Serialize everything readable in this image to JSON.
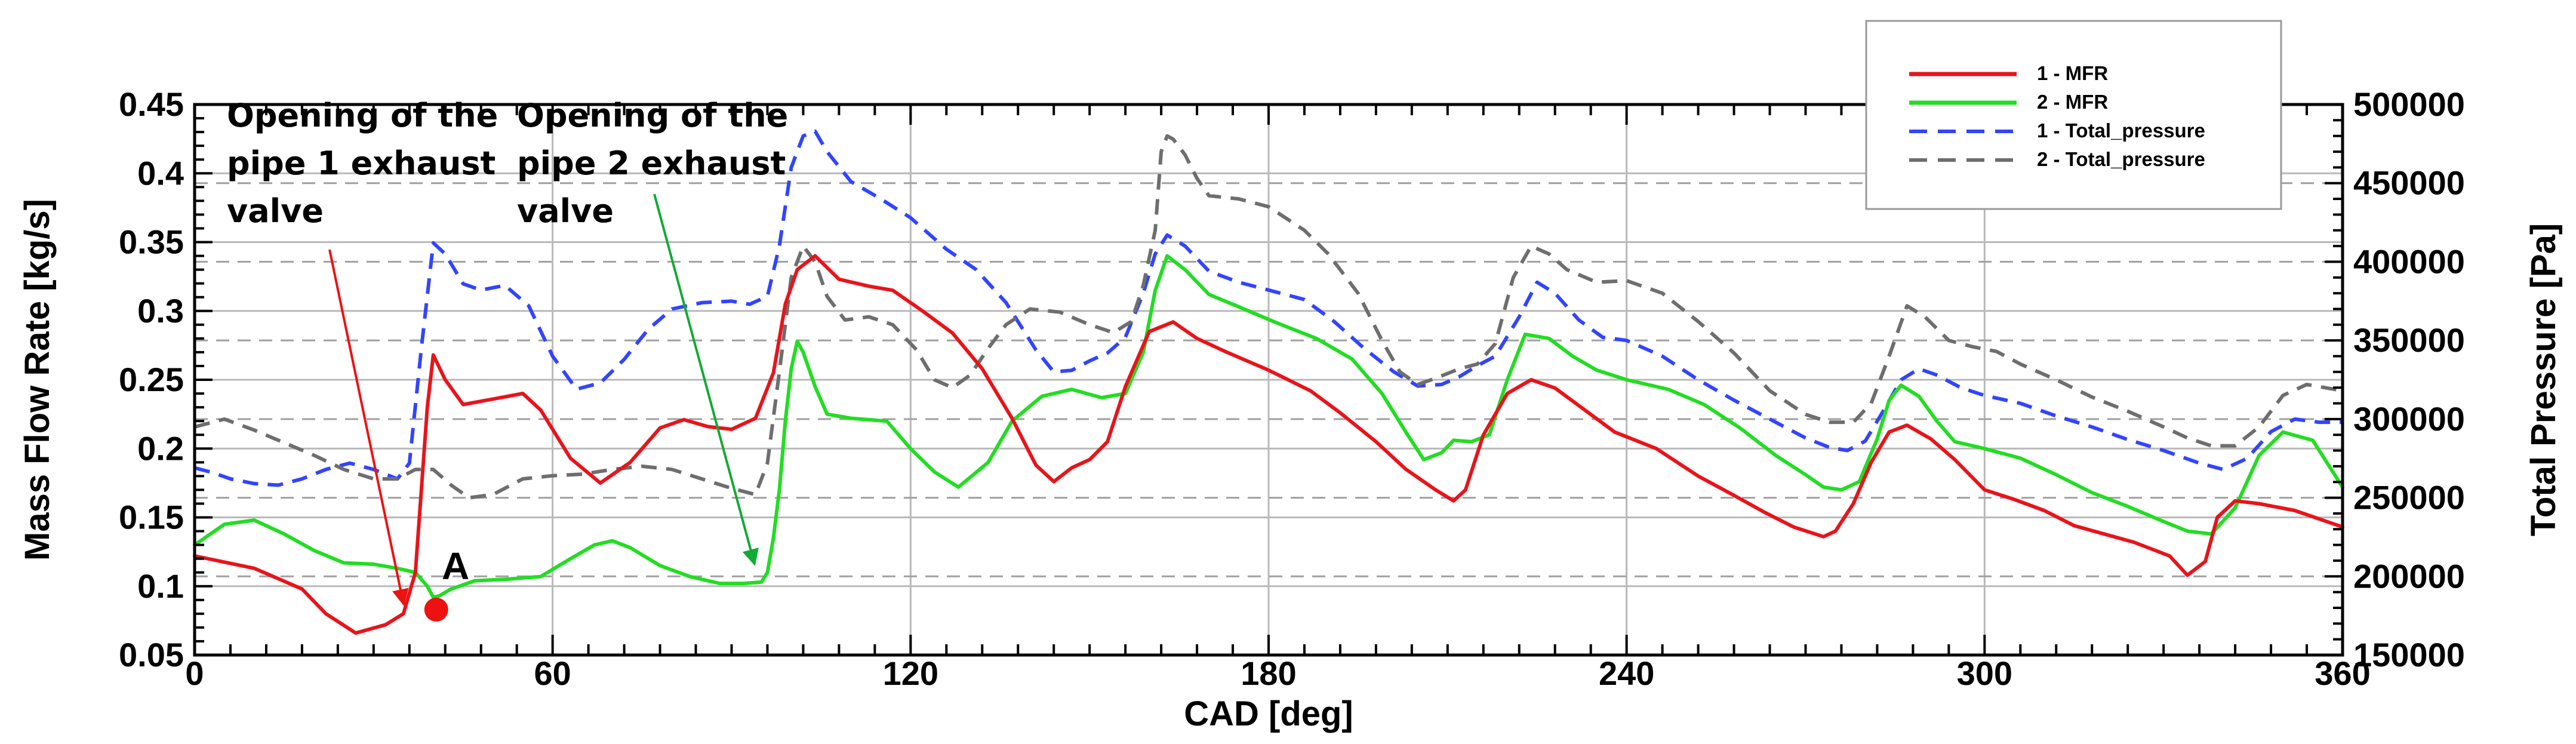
{
  "chart_data": {
    "type": "line",
    "xlabel": "CAD [deg]",
    "ylabel": "Mass Flow Rate [kg/s]",
    "y2label": "Total Pressure [Pa]",
    "xlim": [
      0,
      360
    ],
    "ylim": [
      0.05,
      0.45
    ],
    "y2lim": [
      150000,
      500000
    ],
    "xticks": [
      0,
      60,
      120,
      180,
      240,
      300,
      360
    ],
    "xtick_labels": [
      "0",
      "60",
      "120",
      "180",
      "240",
      "300",
      "360"
    ],
    "yticks": [
      0.05,
      0.1,
      0.15,
      0.2,
      0.25,
      0.3,
      0.35,
      0.4,
      0.45
    ],
    "ytick_labels": [
      "0.05",
      "0.1",
      "0.15",
      "0.2",
      "0.25",
      "0.3",
      "0.35",
      "0.4",
      "0.45"
    ],
    "y2ticks": [
      150000,
      200000,
      250000,
      300000,
      350000,
      400000,
      450000,
      500000
    ],
    "y2tick_labels": [
      "150000",
      "200000",
      "250000",
      "300000",
      "350000",
      "400000",
      "450000",
      "500000"
    ],
    "grid": true,
    "legend_position": "top-right",
    "series": [
      {
        "name": "1 - MFR",
        "axis": "left",
        "color": "#e8141b",
        "style": "solid",
        "x": [
          0,
          10,
          18,
          22,
          27,
          32,
          35,
          37,
          38,
          39,
          40,
          42,
          45,
          50,
          55,
          58,
          63,
          68,
          73,
          78,
          82,
          86,
          90,
          94,
          97,
          99,
          101,
          104,
          108,
          113,
          117,
          122,
          127,
          132,
          137,
          141,
          144,
          147,
          150,
          153,
          156,
          160,
          164,
          168,
          173,
          180,
          187,
          192,
          198,
          203,
          208,
          211,
          213,
          216,
          220,
          224,
          228,
          233,
          238,
          245,
          252,
          258,
          263,
          268,
          273,
          275,
          278,
          281,
          284,
          287,
          291,
          295,
          300,
          305,
          310,
          315,
          320,
          325,
          331,
          334,
          337,
          339,
          342,
          346,
          352,
          360
        ],
        "y": [
          0.122,
          0.113,
          0.098,
          0.08,
          0.066,
          0.072,
          0.08,
          0.11,
          0.17,
          0.23,
          0.268,
          0.25,
          0.232,
          0.236,
          0.24,
          0.228,
          0.193,
          0.175,
          0.19,
          0.215,
          0.221,
          0.216,
          0.214,
          0.222,
          0.255,
          0.305,
          0.33,
          0.34,
          0.323,
          0.318,
          0.315,
          0.3,
          0.284,
          0.258,
          0.222,
          0.188,
          0.176,
          0.186,
          0.192,
          0.205,
          0.245,
          0.285,
          0.292,
          0.28,
          0.27,
          0.257,
          0.242,
          0.226,
          0.205,
          0.185,
          0.17,
          0.162,
          0.17,
          0.21,
          0.24,
          0.25,
          0.244,
          0.228,
          0.212,
          0.2,
          0.18,
          0.166,
          0.154,
          0.143,
          0.136,
          0.14,
          0.16,
          0.19,
          0.212,
          0.217,
          0.207,
          0.192,
          0.17,
          0.163,
          0.155,
          0.144,
          0.138,
          0.132,
          0.122,
          0.108,
          0.118,
          0.15,
          0.162,
          0.16,
          0.155,
          0.143
        ]
      },
      {
        "name": "2 - MFR",
        "axis": "left",
        "color": "#22dd22",
        "style": "solid",
        "x": [
          0,
          5,
          10,
          15,
          20,
          25,
          30,
          34,
          37,
          39,
          40,
          41,
          43,
          47,
          52,
          58,
          63,
          67,
          70,
          73,
          78,
          83,
          88,
          92,
          95,
          96,
          97,
          98,
          99,
          100,
          101,
          102,
          104,
          106,
          110,
          116,
          120,
          124,
          128,
          133,
          137,
          142,
          147,
          152,
          156,
          159,
          161,
          163,
          166,
          170,
          175,
          181,
          188,
          194,
          199,
          203,
          206,
          209,
          211,
          214,
          217,
          220,
          223,
          227,
          231,
          235,
          240,
          247,
          253,
          259,
          265,
          270,
          273,
          276,
          279,
          282,
          284,
          286,
          289,
          292,
          295,
          300,
          306,
          312,
          318,
          324,
          330,
          334,
          338,
          342,
          346,
          350,
          355,
          360
        ],
        "y": [
          0.13,
          0.145,
          0.148,
          0.138,
          0.126,
          0.117,
          0.116,
          0.113,
          0.11,
          0.1,
          0.092,
          0.093,
          0.098,
          0.104,
          0.105,
          0.107,
          0.12,
          0.13,
          0.133,
          0.128,
          0.115,
          0.107,
          0.102,
          0.102,
          0.103,
          0.11,
          0.135,
          0.17,
          0.22,
          0.258,
          0.278,
          0.27,
          0.245,
          0.225,
          0.222,
          0.22,
          0.2,
          0.183,
          0.172,
          0.19,
          0.22,
          0.238,
          0.243,
          0.237,
          0.24,
          0.27,
          0.315,
          0.34,
          0.33,
          0.312,
          0.303,
          0.292,
          0.28,
          0.265,
          0.24,
          0.212,
          0.192,
          0.197,
          0.206,
          0.205,
          0.21,
          0.25,
          0.283,
          0.28,
          0.267,
          0.257,
          0.25,
          0.243,
          0.232,
          0.215,
          0.195,
          0.181,
          0.172,
          0.17,
          0.176,
          0.207,
          0.235,
          0.246,
          0.238,
          0.22,
          0.205,
          0.2,
          0.193,
          0.181,
          0.168,
          0.158,
          0.147,
          0.14,
          0.138,
          0.157,
          0.195,
          0.212,
          0.206,
          0.172
        ]
      },
      {
        "name": "1 - Total_pressure",
        "axis": "right",
        "color": "#3344ff",
        "style": "dashed",
        "x": [
          0,
          3,
          6,
          10,
          14,
          18,
          22,
          26,
          30,
          34,
          36,
          38,
          40,
          42,
          45,
          48,
          52,
          56,
          60,
          64,
          68,
          72,
          76,
          80,
          85,
          90,
          93,
          96,
          98,
          100,
          102,
          104,
          106,
          110,
          115,
          120,
          126,
          131,
          136,
          141,
          144,
          147,
          150,
          153,
          156,
          159,
          161,
          163,
          166,
          170,
          175,
          180,
          186,
          191,
          196,
          201,
          205,
          209,
          212,
          215,
          218,
          222,
          225,
          228,
          232,
          236,
          240,
          246,
          252,
          258,
          264,
          270,
          274,
          277,
          280,
          283,
          286,
          289,
          292,
          296,
          300,
          306,
          312,
          318,
          324,
          330,
          336,
          340,
          344,
          348,
          352,
          356,
          360
        ],
        "y": [
          269000,
          266000,
          262000,
          259000,
          258000,
          262000,
          268000,
          272000,
          268000,
          262000,
          272000,
          345000,
          412000,
          405000,
          386000,
          382000,
          385000,
          372000,
          340000,
          319000,
          323000,
          338000,
          357000,
          370000,
          374000,
          375000,
          373000,
          378000,
          410000,
          460000,
          480000,
          483000,
          470000,
          451000,
          440000,
          428000,
          408000,
          395000,
          374000,
          344000,
          330000,
          331000,
          337000,
          342000,
          352000,
          380000,
          405000,
          417000,
          410000,
          394000,
          387000,
          382000,
          376000,
          362000,
          345000,
          330000,
          321000,
          322000,
          327000,
          334000,
          340000,
          365000,
          387000,
          380000,
          363000,
          352000,
          350000,
          340000,
          325000,
          312000,
          300000,
          288000,
          282000,
          280000,
          286000,
          305000,
          325000,
          332000,
          328000,
          320000,
          315000,
          310000,
          302000,
          295000,
          287000,
          280000,
          272000,
          268000,
          275000,
          292000,
          300000,
          298000,
          298000
        ]
      },
      {
        "name": "2 - Total_pressure",
        "axis": "right",
        "color": "#6e6e6e",
        "style": "dashed",
        "x": [
          0,
          5,
          10,
          15,
          20,
          25,
          30,
          34,
          37,
          40,
          43,
          46,
          50,
          55,
          60,
          65,
          70,
          75,
          80,
          85,
          90,
          94,
          96,
          98,
          100,
          102,
          104,
          106,
          109,
          113,
          117,
          121,
          124,
          127,
          130,
          133,
          136,
          140,
          145,
          150,
          154,
          157,
          159,
          161,
          162,
          163,
          164,
          166,
          168,
          170,
          175,
          180,
          186,
          190,
          195,
          199,
          202,
          205,
          208,
          212,
          215,
          218,
          221,
          224,
          227,
          230,
          235,
          240,
          246,
          252,
          258,
          264,
          270,
          274,
          278,
          281,
          284,
          287,
          290,
          294,
          298,
          302,
          306,
          312,
          318,
          324,
          330,
          334,
          338,
          342,
          346,
          350,
          354,
          360
        ],
        "y": [
          295000,
          300000,
          293000,
          285000,
          277000,
          268000,
          262000,
          262000,
          268000,
          268000,
          258000,
          250000,
          252000,
          262000,
          264000,
          265000,
          268000,
          270000,
          268000,
          262000,
          256000,
          252000,
          272000,
          330000,
          390000,
          410000,
          400000,
          378000,
          363000,
          365000,
          360000,
          344000,
          325000,
          320000,
          328000,
          345000,
          360000,
          370000,
          368000,
          360000,
          355000,
          362000,
          385000,
          420000,
          470000,
          480000,
          478000,
          468000,
          453000,
          442000,
          440000,
          435000,
          420000,
          405000,
          380000,
          350000,
          330000,
          322000,
          326000,
          332000,
          335000,
          348000,
          390000,
          410000,
          405000,
          395000,
          387000,
          388000,
          380000,
          362000,
          342000,
          318000,
          303000,
          298000,
          298000,
          310000,
          340000,
          372000,
          365000,
          350000,
          346000,
          343000,
          335000,
          325000,
          314000,
          305000,
          295000,
          288000,
          283000,
          283000,
          295000,
          315000,
          322000,
          318000
        ]
      }
    ],
    "annotations": {
      "pipe1": [
        "Opening of the",
        "pipe 1 exhaust",
        "valve"
      ],
      "pipe2": [
        "Opening of the",
        "pipe 2 exhaust",
        "valve"
      ],
      "point_label": "A",
      "point": {
        "x": 40.5,
        "y": 0.083
      }
    },
    "colors": {
      "pipe1_arrow": "#ee1111",
      "pipe2_arrow": "#11aa33",
      "point": "#ee1111"
    }
  }
}
